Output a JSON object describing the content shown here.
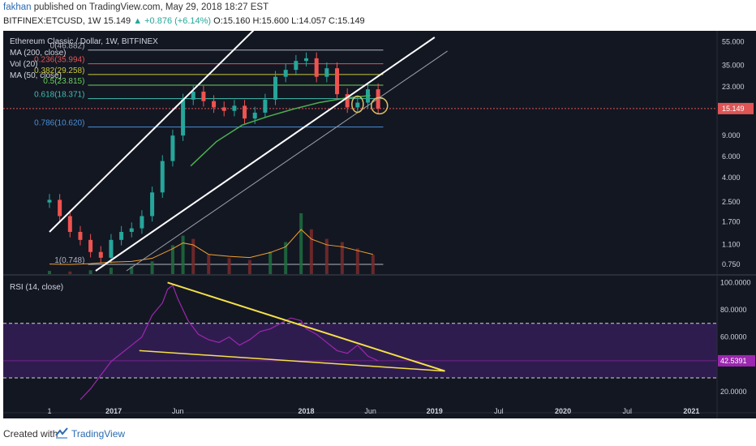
{
  "header": {
    "author": "fakhan",
    "published": "published on TradingView.com, May 29, 2018 18:27 EST",
    "symbol": "BITFINEX:ETCUSD, 1W",
    "price": "15.149",
    "change": "▲ +0.876 (+6.14%)",
    "ohlc": "O:15.160 H:15.600 L:14.057 C:15.149"
  },
  "legend": {
    "title": "Ethereum Classic / Dollar, 1W, BITFINEX",
    "ma200": "MA (200, close)",
    "vol": "Vol (20)",
    "ma50": "MA (50, close)",
    "rsi": "RSI (14, close)"
  },
  "footer": {
    "created": "Created with",
    "brand": "TradingView"
  },
  "chart_data": [
    {
      "type": "candlestick",
      "title": "Ethereum Classic / Dollar, 1W, BITFINEX",
      "y_scale": "log",
      "y_ticks": [
        55.0,
        35.0,
        23.0,
        15.0,
        9.0,
        6.0,
        4.0,
        2.5,
        1.7,
        1.1,
        0.75
      ],
      "y_tick_labels": [
        "55.000",
        "35.000",
        "23.000",
        "15.000",
        "9.000",
        "6.000",
        "4.000",
        "2.500",
        "1.700",
        "1.100",
        "0.750"
      ],
      "x_tick_labels": [
        "1",
        "2017",
        "Jun",
        "2018",
        "Jun",
        "2019",
        "Jul",
        "2020",
        "Jul",
        "2021"
      ],
      "x_tick_positions": [
        0,
        0.25,
        0.5,
        1.0,
        1.25,
        1.5,
        1.75,
        2.0,
        2.25,
        2.5
      ],
      "last_price": 15.149,
      "last_price_label": "15.149",
      "fib_levels": [
        {
          "label": "0(46.882)",
          "value": 46.882,
          "color": "#b2b5be"
        },
        {
          "label": "0.236(35.994)",
          "value": 35.994,
          "color": "#e05555"
        },
        {
          "label": "0.382(29.258)",
          "value": 29.258,
          "color": "#c8c83a"
        },
        {
          "label": "0.5(23.815)",
          "value": 23.815,
          "color": "#6bcf5b"
        },
        {
          "label": "0.618(18.371)",
          "value": 18.371,
          "color": "#3fbfae"
        },
        {
          "label": "0.786(10.620)",
          "value": 10.62,
          "color": "#4a90d9"
        },
        {
          "label": "1(0.748)",
          "value": 0.748,
          "color": "#b2b5be"
        }
      ],
      "close_series": {
        "t": [
          0.0,
          0.04,
          0.08,
          0.12,
          0.16,
          0.2,
          0.24,
          0.28,
          0.32,
          0.36,
          0.4,
          0.44,
          0.48,
          0.52,
          0.56,
          0.6,
          0.64,
          0.68,
          0.72,
          0.76,
          0.8,
          0.84,
          0.88,
          0.92,
          0.96,
          1.0,
          1.04,
          1.08,
          1.12,
          1.16,
          1.2,
          1.24,
          1.28
        ],
        "close": [
          2.6,
          1.9,
          1.4,
          1.2,
          0.95,
          0.85,
          1.2,
          1.4,
          1.5,
          1.9,
          3.0,
          5.5,
          9.0,
          18.0,
          21.0,
          17.5,
          15.5,
          14.5,
          16.0,
          12.5,
          14.0,
          18.0,
          28.0,
          32.0,
          38.0,
          40.0,
          28.0,
          33.0,
          20.0,
          15.5,
          17.0,
          22.0,
          15.149
        ]
      },
      "ma50": {
        "t": [
          0.55,
          0.65,
          0.75,
          0.85,
          0.95,
          1.05,
          1.15,
          1.25
        ],
        "value": [
          5.0,
          8.0,
          11.0,
          13.0,
          15.0,
          17.0,
          18.5,
          19.5
        ]
      },
      "volume": {
        "t": [
          0.0,
          0.08,
          0.16,
          0.24,
          0.32,
          0.4,
          0.48,
          0.52,
          0.56,
          0.62,
          0.7,
          0.78,
          0.86,
          0.92,
          0.98,
          1.02,
          1.08,
          1.14,
          1.2,
          1.26
        ],
        "value": [
          0.05,
          0.04,
          0.06,
          0.1,
          0.12,
          0.2,
          0.45,
          0.6,
          0.55,
          0.3,
          0.25,
          0.22,
          0.35,
          0.5,
          0.95,
          0.7,
          0.55,
          0.5,
          0.4,
          0.3
        ]
      }
    },
    {
      "type": "line",
      "title": "RSI (14, close)",
      "y_ticks": [
        100,
        80,
        60,
        40,
        20
      ],
      "y_tick_labels": [
        "100.0000",
        "80.0000",
        "60.0000",
        "40.0000",
        "20.0000"
      ],
      "bands": [
        30,
        70
      ],
      "last_value": 42.5391,
      "last_value_label": "42.5391",
      "series": {
        "t": [
          0.12,
          0.16,
          0.2,
          0.24,
          0.28,
          0.32,
          0.36,
          0.4,
          0.44,
          0.46,
          0.48,
          0.5,
          0.52,
          0.54,
          0.58,
          0.62,
          0.66,
          0.7,
          0.74,
          0.78,
          0.82,
          0.86,
          0.9,
          0.94,
          0.98,
          1.0,
          1.04,
          1.08,
          1.12,
          1.16,
          1.2,
          1.24,
          1.28
        ],
        "value": [
          14,
          22,
          32,
          42,
          48,
          54,
          60,
          76,
          85,
          95,
          98,
          88,
          80,
          72,
          62,
          58,
          56,
          60,
          54,
          58,
          64,
          66,
          70,
          74,
          72,
          66,
          62,
          56,
          50,
          48,
          54,
          46,
          42.5391
        ]
      }
    }
  ]
}
